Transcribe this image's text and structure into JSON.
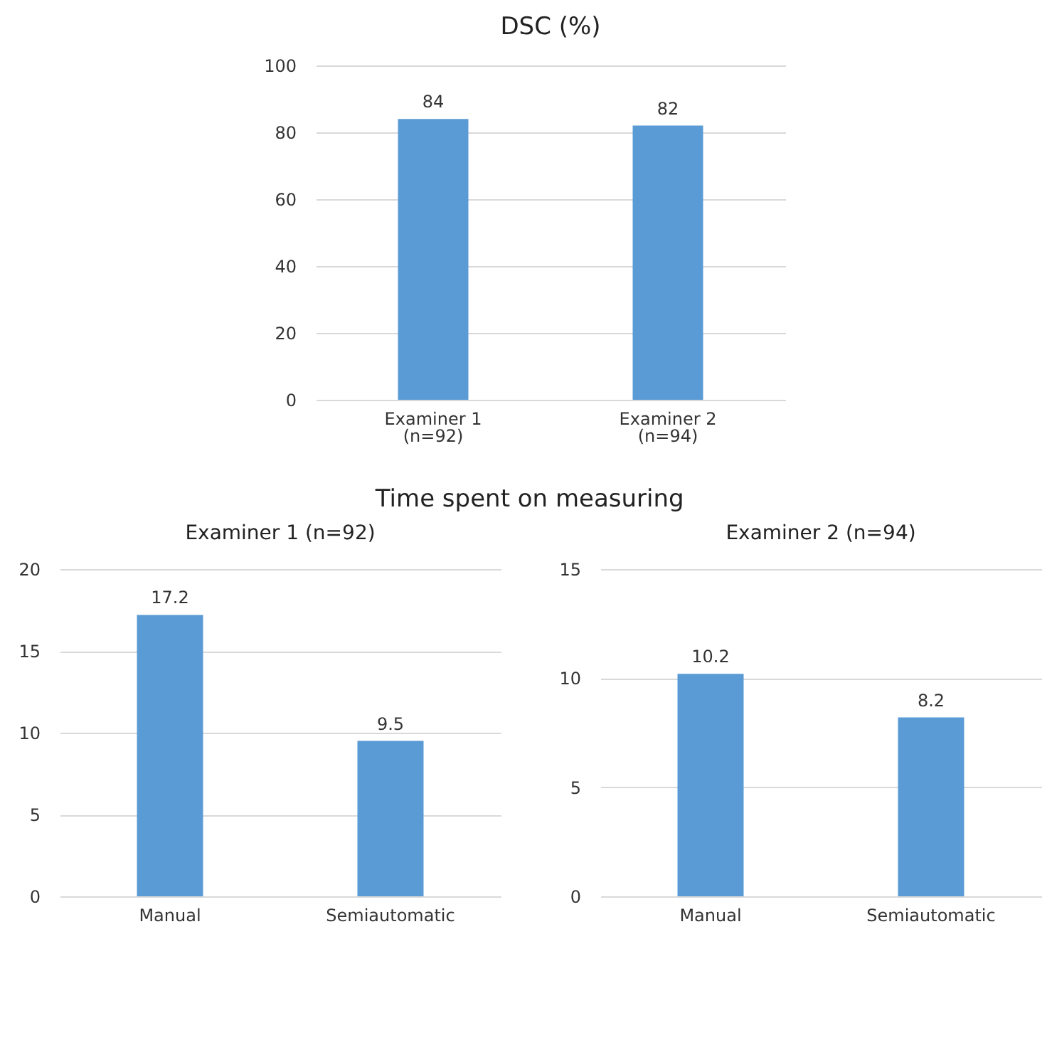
{
  "chart_data": [
    {
      "type": "bar",
      "title": "DSC (%)",
      "categories": [
        "Examiner 1\n(n=92)",
        "Examiner 2\n(n=94)"
      ],
      "values": [
        84,
        82
      ],
      "color": "#5b9bd5",
      "ylim": [
        0,
        100
      ],
      "yticks": [
        0,
        20,
        40,
        60,
        80,
        100
      ],
      "grid": "y",
      "data_labels": true
    },
    {
      "type": "bar",
      "title": "Examiner 1 (n=92)",
      "annotations": [
        "Time spent on measuring"
      ],
      "categories": [
        "Manual",
        "Semiautomatic"
      ],
      "values": [
        17.2,
        9.5
      ],
      "color": "#5b9bd5",
      "ylim": [
        0,
        20
      ],
      "yticks": [
        0,
        5,
        10,
        15,
        20
      ],
      "grid": "y",
      "data_labels": true
    },
    {
      "type": "bar",
      "title": "Examiner 2 (n=94)",
      "categories": [
        "Manual",
        "Semiautomatic"
      ],
      "values": [
        10.2,
        8.2
      ],
      "color": "#5b9bd5",
      "ylim": [
        0,
        15
      ],
      "yticks": [
        0,
        5,
        10,
        15
      ],
      "grid": "y",
      "data_labels": true
    }
  ]
}
